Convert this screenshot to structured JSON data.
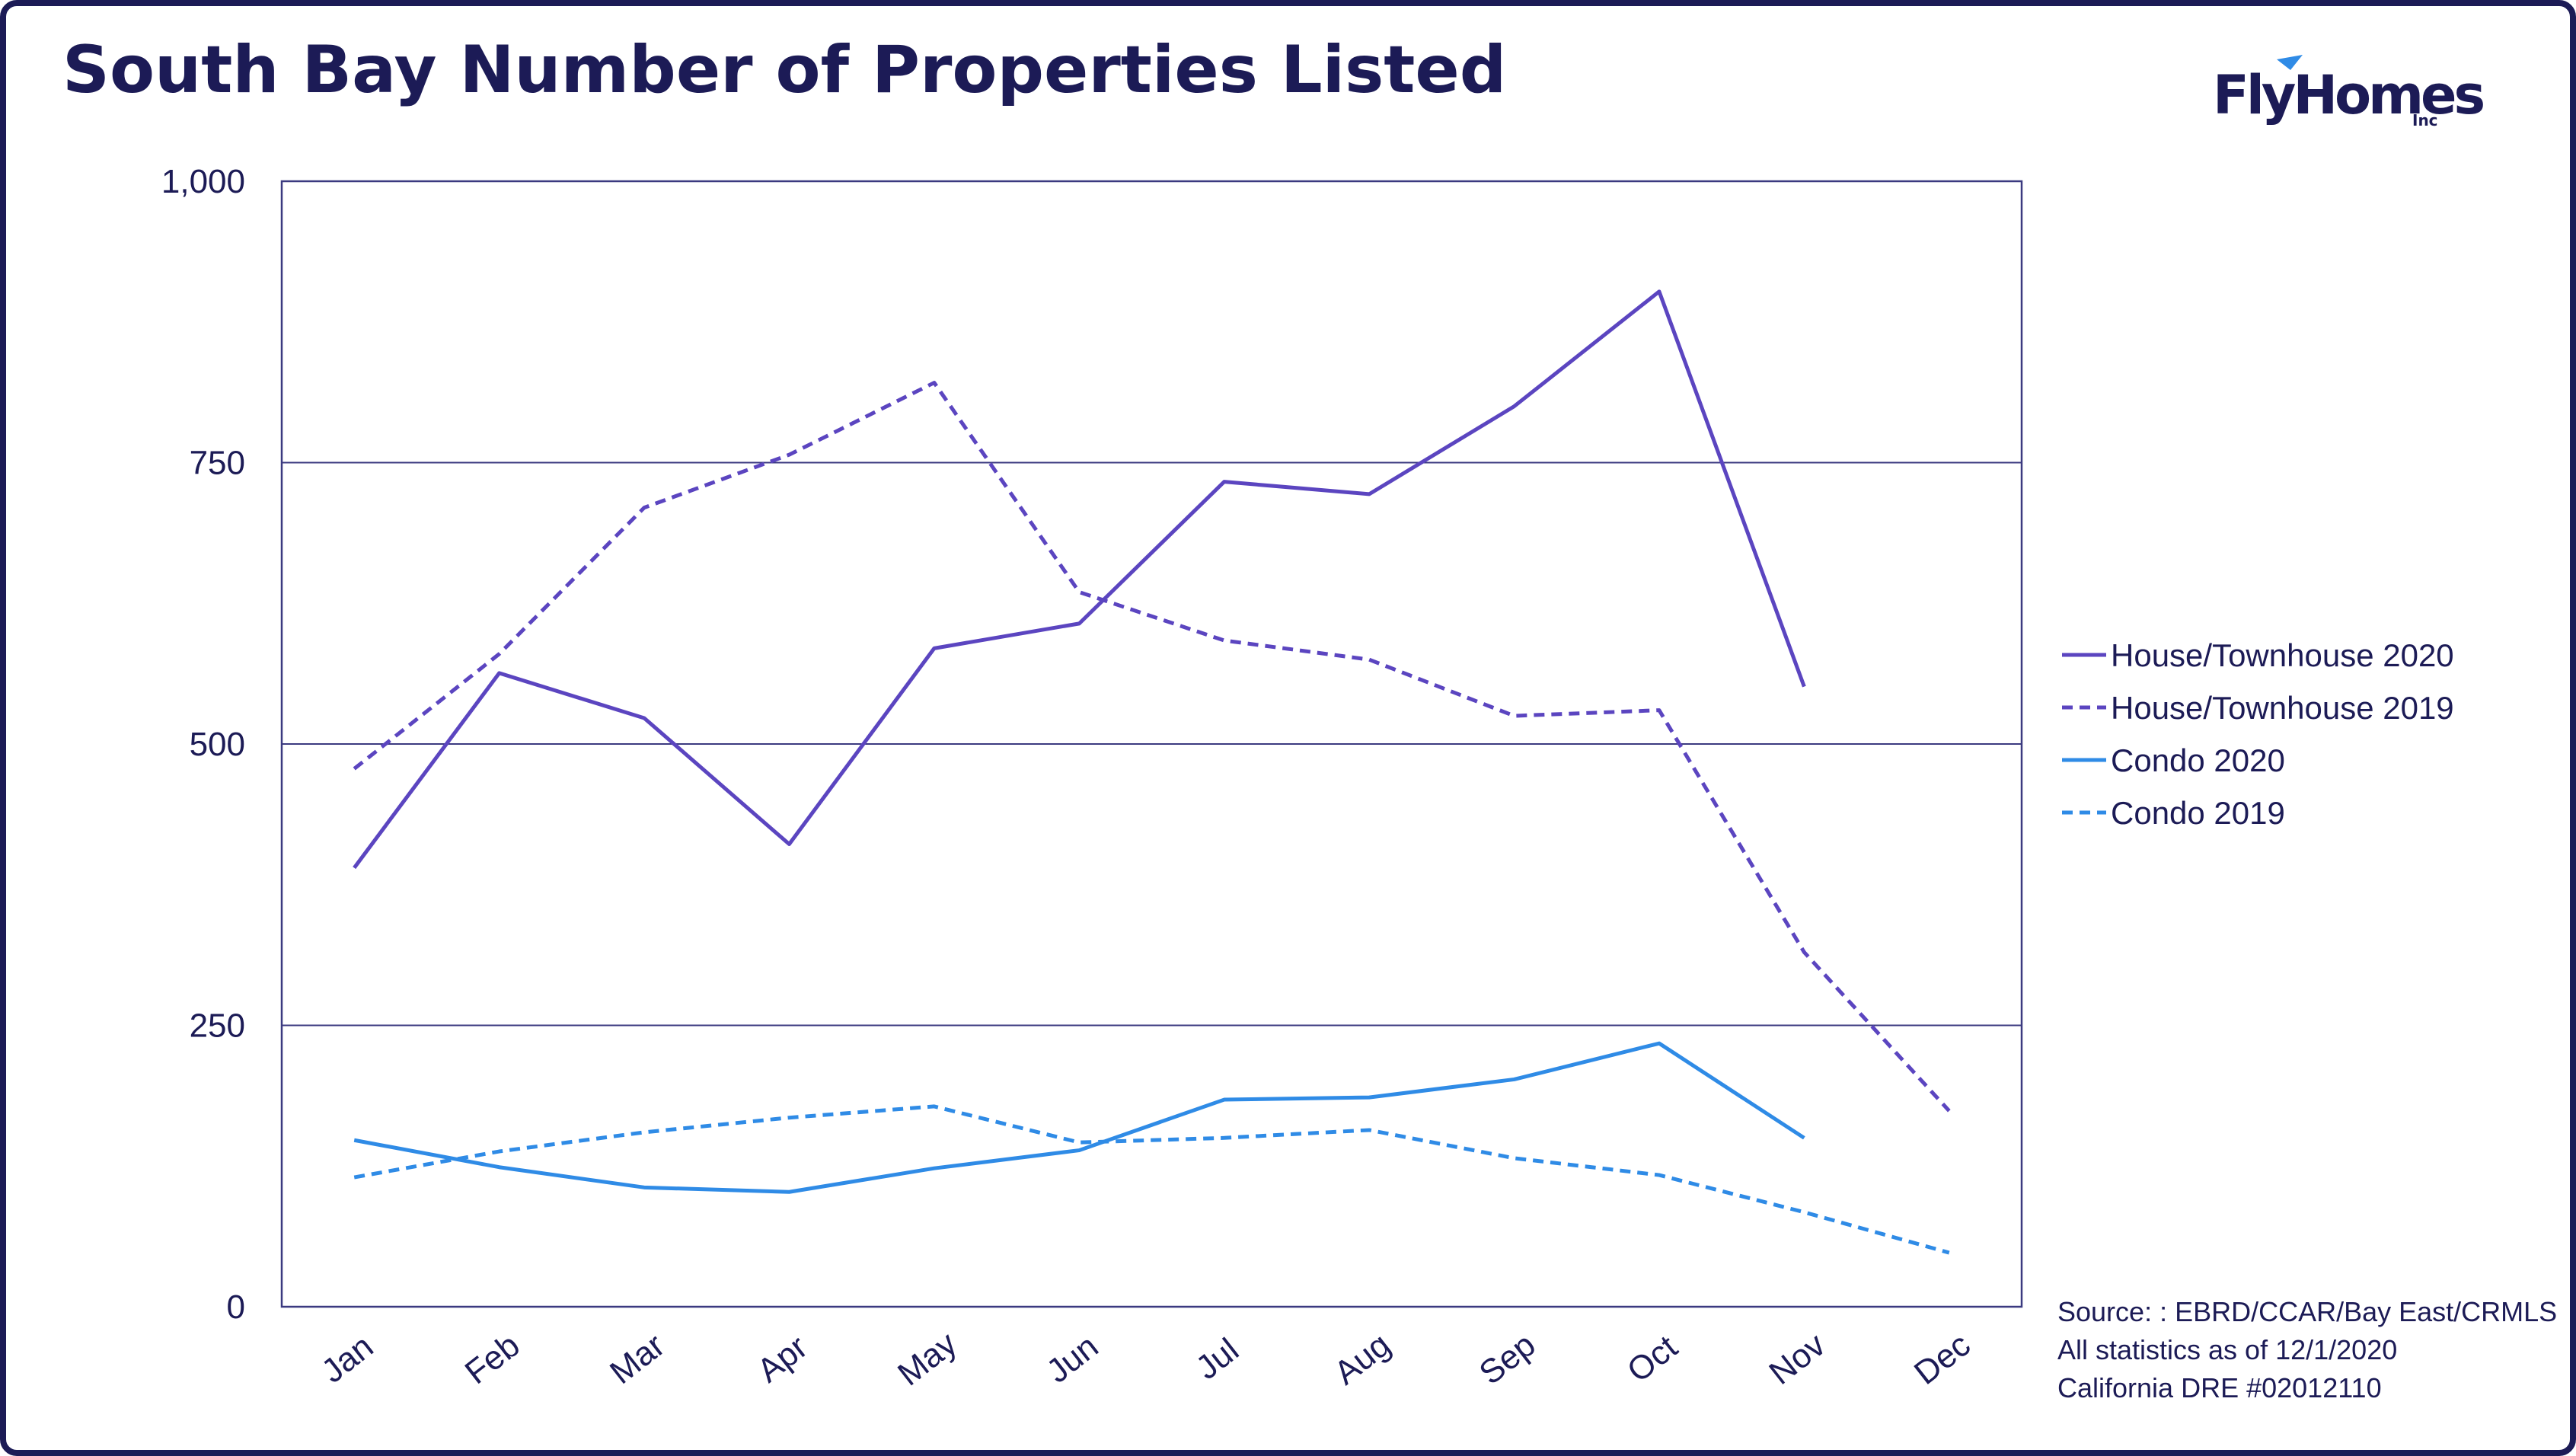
{
  "title": "South Bay Number of Properties Listed",
  "logo": {
    "name": "FlyHomes",
    "suffix": "Inc"
  },
  "source_lines": [
    "Source: : EBRD/CCAR/Bay East/CRMLS",
    "All statistics as of 12/1/2020",
    "California DRE #02012110"
  ],
  "colors": {
    "frame": "#1c1b56",
    "purple": "#5b45c0",
    "blue": "#2f8be6",
    "grid": "#3b3a80"
  },
  "chart_data": {
    "type": "line",
    "title": "South Bay Number of Properties Listed",
    "xlabel": "",
    "ylabel": "",
    "categories": [
      "Jan",
      "Feb",
      "Mar",
      "Apr",
      "May",
      "Jun",
      "Jul",
      "Aug",
      "Sep",
      "Oct",
      "Nov",
      "Dec"
    ],
    "ylim": [
      0,
      1000
    ],
    "yticks": [
      0,
      250,
      500,
      750,
      1000
    ],
    "ytick_labels": [
      "0",
      "250",
      "500",
      "750",
      "1,000"
    ],
    "grid": true,
    "legend_position": "right",
    "series": [
      {
        "name": "House/Townhouse 2020",
        "color": "#5b45c0",
        "dash": "solid",
        "values": [
          390,
          563,
          523,
          411,
          585,
          607,
          733,
          722,
          800,
          902,
          551,
          null
        ]
      },
      {
        "name": "House/Townhouse 2019",
        "color": "#5b45c0",
        "dash": "dashed",
        "values": [
          478,
          580,
          710,
          757,
          821,
          635,
          592,
          575,
          525,
          530,
          315,
          174
        ]
      },
      {
        "name": "Condo 2020",
        "color": "#2f8be6",
        "dash": "solid",
        "values": [
          148,
          124,
          106,
          102,
          123,
          139,
          184,
          186,
          202,
          234,
          150,
          null
        ]
      },
      {
        "name": "Condo 2019",
        "color": "#2f8be6",
        "dash": "dashed",
        "values": [
          115,
          138,
          155,
          168,
          178,
          146,
          150,
          157,
          132,
          117,
          84,
          48
        ]
      }
    ]
  }
}
